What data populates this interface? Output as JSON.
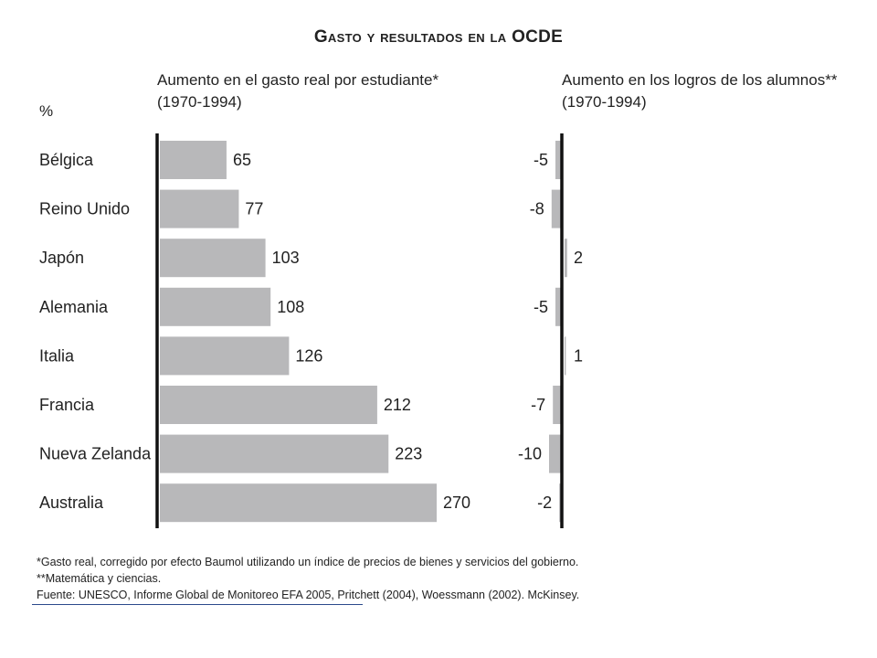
{
  "chart_data": {
    "type": "bar",
    "orientation": "horizontal",
    "title": "Gasto y resultados en la OCDE",
    "unit_label": "%",
    "categories": [
      "Bélgica",
      "Reino Unido",
      "Japón",
      "Alemania",
      "Italia",
      "Francia",
      "Nueva Zelanda",
      "Australia"
    ],
    "series": [
      {
        "name": "Aumento en el gasto real por estudiante* (1970-1994)",
        "heading_line1": "Aumento en el gasto real por estudiante*",
        "heading_line2": "(1970-1994)",
        "values": [
          65,
          77,
          103,
          108,
          126,
          212,
          223,
          270
        ],
        "value_labels": [
          "65",
          "77",
          "103",
          "108",
          "126",
          "212",
          "223",
          "270"
        ],
        "color": "#b8b8ba"
      },
      {
        "name": "Aumento en los logros de los alumnos** (1970-1994)",
        "heading_line1": "Aumento en los logros de los alumnos**",
        "heading_line2": "(1970-1994)",
        "values": [
          -5,
          -8,
          2,
          -5,
          1,
          -7,
          -10,
          -2
        ],
        "value_labels": [
          "-5",
          "-8",
          "2",
          "-5",
          "1",
          "-7",
          "-10",
          "-2"
        ],
        "color": "#b8b8ba"
      }
    ],
    "grid": false,
    "legend": "none"
  },
  "footnotes": {
    "note1": "*Gasto real, corregido por efecto Baumol utilizando un índice de precios de bienes y servicios del gobierno.",
    "note2": "**Matemática y ciencias.",
    "source": "Fuente: UNESCO, Informe Global de Monitoreo EFA 2005, Pritchett (2004), Woessmann (2002). McKinsey."
  },
  "colors": {
    "bar": "#b8b8ba",
    "axis": "#111111",
    "text": "#222222",
    "source_rule": "#2b4a8b"
  }
}
